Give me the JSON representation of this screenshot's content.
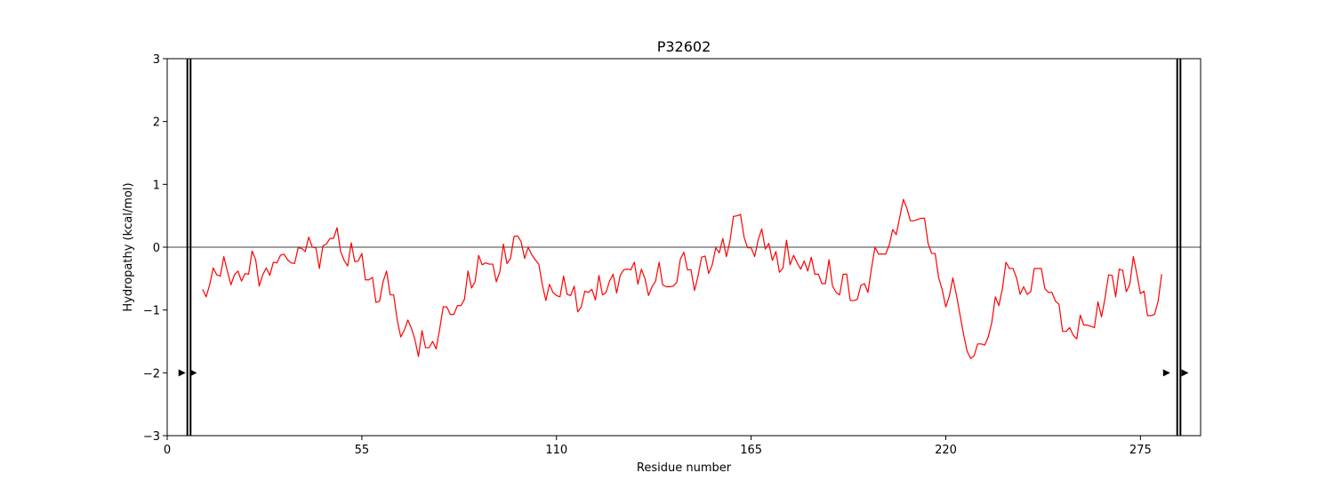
{
  "chart_data": {
    "type": "line",
    "title": "P32602",
    "xlabel": "Residue number",
    "ylabel": "Hydropathy (kcal/mol)",
    "xlim": [
      0,
      292
    ],
    "ylim": [
      -3,
      3
    ],
    "xticks": [
      0,
      55,
      110,
      165,
      220,
      275
    ],
    "yticks": [
      -3,
      -2,
      -1,
      0,
      1,
      2,
      3
    ],
    "xtick_labels": [
      "0",
      "55",
      "110",
      "165",
      "220",
      "275"
    ],
    "ytick_labels": [
      "−3",
      "−2",
      "−1",
      "0",
      "1",
      "2",
      "3"
    ],
    "grid": false,
    "zero_line": 0,
    "series": [
      {
        "color": "#ff0000",
        "x_start": 10,
        "x_step": 1,
        "values": [
          -0.67,
          -0.79,
          -0.6,
          -0.33,
          -0.44,
          -0.46,
          -0.15,
          -0.38,
          -0.6,
          -0.44,
          -0.38,
          -0.54,
          -0.42,
          -0.43,
          -0.06,
          -0.2,
          -0.62,
          -0.44,
          -0.33,
          -0.45,
          -0.24,
          -0.25,
          -0.13,
          -0.11,
          -0.2,
          -0.25,
          -0.26,
          -0.01,
          -0.02,
          -0.07,
          0.16,
          0.0,
          -0.01,
          -0.34,
          0.02,
          0.05,
          0.14,
          0.14,
          0.31,
          -0.07,
          -0.21,
          -0.3,
          0.07,
          -0.23,
          -0.22,
          -0.1,
          -0.52,
          -0.52,
          -0.48,
          -0.88,
          -0.86,
          -0.55,
          -0.38,
          -0.76,
          -0.76,
          -1.16,
          -1.43,
          -1.32,
          -1.16,
          -1.29,
          -1.47,
          -1.74,
          -1.33,
          -1.6,
          -1.6,
          -1.5,
          -1.62,
          -1.3,
          -0.95,
          -0.95,
          -1.07,
          -1.07,
          -0.93,
          -0.93,
          -0.83,
          -0.38,
          -0.65,
          -0.55,
          -0.13,
          -0.28,
          -0.25,
          -0.27,
          -0.27,
          -0.55,
          -0.39,
          0.05,
          -0.26,
          -0.18,
          0.17,
          0.18,
          0.09,
          -0.18,
          0.0,
          -0.12,
          -0.2,
          -0.27,
          -0.6,
          -0.85,
          -0.59,
          -0.72,
          -0.77,
          -0.79,
          -0.46,
          -0.75,
          -0.77,
          -0.62,
          -1.03,
          -0.95,
          -0.7,
          -0.72,
          -0.67,
          -0.84,
          -0.45,
          -0.76,
          -0.72,
          -0.54,
          -0.43,
          -0.73,
          -0.45,
          -0.36,
          -0.35,
          -0.36,
          -0.24,
          -0.59,
          -0.35,
          -0.5,
          -0.77,
          -0.63,
          -0.54,
          -0.24,
          -0.6,
          -0.63,
          -0.63,
          -0.62,
          -0.56,
          -0.19,
          -0.08,
          -0.36,
          -0.36,
          -0.69,
          -0.46,
          -0.16,
          -0.14,
          -0.42,
          -0.28,
          -0.01,
          -0.09,
          0.14,
          -0.15,
          0.09,
          0.49,
          0.5,
          0.52,
          0.16,
          -0.01,
          -0.01,
          -0.15,
          0.12,
          0.29,
          -0.03,
          0.06,
          -0.21,
          -0.07,
          -0.4,
          -0.33,
          0.11,
          -0.28,
          -0.13,
          -0.25,
          -0.35,
          -0.22,
          -0.38,
          -0.16,
          -0.43,
          -0.43,
          -0.58,
          -0.58,
          -0.2,
          -0.62,
          -0.72,
          -0.76,
          -0.43,
          -0.43,
          -0.85,
          -0.85,
          -0.83,
          -0.61,
          -0.58,
          -0.72,
          -0.34,
          0.0,
          -0.11,
          -0.11,
          -0.11,
          0.03,
          0.28,
          0.2,
          0.48,
          0.76,
          0.62,
          0.42,
          0.42,
          0.44,
          0.46,
          0.46,
          0.06,
          -0.1,
          -0.1,
          -0.49,
          -0.68,
          -0.95,
          -0.78,
          -0.49,
          -0.76,
          -1.07,
          -1.38,
          -1.65,
          -1.77,
          -1.73,
          -1.54,
          -1.54,
          -1.56,
          -1.43,
          -1.2,
          -0.79,
          -0.93,
          -0.66,
          -0.24,
          -0.34,
          -0.34,
          -0.49,
          -0.75,
          -0.63,
          -0.75,
          -0.71,
          -0.34,
          -0.34,
          -0.34,
          -0.66,
          -0.72,
          -0.72,
          -0.86,
          -0.91,
          -1.34,
          -1.34,
          -1.28,
          -1.4,
          -1.46,
          -1.08,
          -1.24,
          -1.24,
          -1.26,
          -1.28,
          -0.87,
          -1.11,
          -0.81,
          -0.44,
          -0.45,
          -0.79,
          -0.35,
          -0.37,
          -0.71,
          -0.59,
          -0.15,
          -0.43,
          -0.74,
          -0.7,
          -1.09,
          -1.09,
          -1.07,
          -0.86,
          -0.43
        ]
      }
    ],
    "markers": {
      "vertical_lines_x": [
        5.7,
        6.6,
        285.4,
        286.3
      ],
      "arrow_y": -2,
      "arrow_x": [
        4.2,
        7.4,
        282.4,
        287.6
      ]
    }
  }
}
